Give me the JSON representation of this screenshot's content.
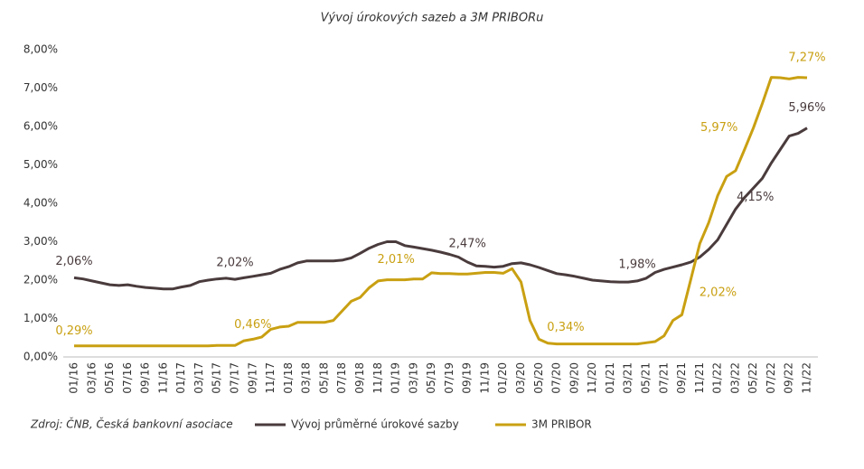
{
  "chart_data": {
    "type": "line",
    "title": "Vývoj úrokových sazeb a 3M PRIBORu",
    "source": "Zdroj: ČNB, Česká bankovní asociace",
    "categories": [
      "01/16",
      null,
      "03/16",
      null,
      "05/16",
      null,
      "07/16",
      null,
      "09/16",
      null,
      "11/16",
      null,
      "01/17",
      null,
      "03/17",
      null,
      "05/17",
      null,
      "07/17",
      null,
      "09/17",
      null,
      "11/17",
      null,
      "01/18",
      null,
      "03/18",
      null,
      "05/18",
      null,
      "07/18",
      null,
      "09/18",
      null,
      "11/18",
      null,
      "01/19",
      null,
      "03/19",
      null,
      "05/19",
      null,
      "07/19",
      null,
      "09/19",
      null,
      "11/19",
      null,
      "01/20",
      null,
      "03/20",
      null,
      "05/20",
      null,
      "07/20",
      null,
      "09/20",
      null,
      "11/20",
      null,
      "01/21",
      null,
      "03/21",
      null,
      "05/21",
      null,
      "07/21",
      null,
      "09/21",
      null,
      "11/21",
      null,
      "01/22",
      null,
      "03/22",
      null,
      "05/22",
      null,
      "07/22",
      null,
      "09/22",
      null,
      "11/22"
    ],
    "series": [
      {
        "name": "Vývoj průměrné úrokové sazby",
        "color": "#4a3b3d",
        "values": [
          2.06,
          2.03,
          1.98,
          1.93,
          1.88,
          1.86,
          1.88,
          1.84,
          1.81,
          1.79,
          1.77,
          1.77,
          1.82,
          1.86,
          1.96,
          2.0,
          2.03,
          2.05,
          2.02,
          2.06,
          2.1,
          2.14,
          2.18,
          2.28,
          2.35,
          2.45,
          2.5,
          2.5,
          2.5,
          2.5,
          2.52,
          2.58,
          2.7,
          2.83,
          2.93,
          3.0,
          3.0,
          2.9,
          2.86,
          2.82,
          2.78,
          2.73,
          2.67,
          2.6,
          2.47,
          2.37,
          2.36,
          2.34,
          2.36,
          2.43,
          2.45,
          2.4,
          2.33,
          2.25,
          2.17,
          2.14,
          2.1,
          2.05,
          2.0,
          1.98,
          1.96,
          1.95,
          1.95,
          1.98,
          2.05,
          2.2,
          2.28,
          2.34,
          2.4,
          2.47,
          2.6,
          2.8,
          3.05,
          3.45,
          3.85,
          4.15,
          4.4,
          4.65,
          5.05,
          5.4,
          5.75,
          5.82,
          5.96
        ],
        "value_labels": [
          "2,06%",
          null,
          null,
          null,
          null,
          null,
          null,
          null,
          null,
          null,
          null,
          null,
          null,
          null,
          null,
          null,
          null,
          null,
          "2,02%",
          null,
          null,
          null,
          null,
          null,
          null,
          null,
          null,
          null,
          null,
          null,
          null,
          null,
          null,
          null,
          null,
          null,
          null,
          null,
          null,
          null,
          null,
          null,
          null,
          null,
          "2,47%",
          null,
          null,
          null,
          null,
          null,
          null,
          null,
          null,
          null,
          null,
          null,
          null,
          null,
          null,
          null,
          null,
          null,
          null,
          "1,98%",
          null,
          null,
          null,
          null,
          null,
          null,
          null,
          null,
          null,
          null,
          null,
          "4,15%",
          null,
          null,
          null,
          null,
          null,
          null,
          "5,96%"
        ]
      },
      {
        "name": "3M PRIBOR",
        "color": "#c9a012",
        "values": [
          0.29,
          0.29,
          0.29,
          0.29,
          0.29,
          0.29,
          0.29,
          0.29,
          0.29,
          0.29,
          0.29,
          0.29,
          0.29,
          0.29,
          0.29,
          0.29,
          0.3,
          0.3,
          0.3,
          0.42,
          0.46,
          0.52,
          0.72,
          0.78,
          0.8,
          0.9,
          0.9,
          0.9,
          0.9,
          0.95,
          1.2,
          1.45,
          1.55,
          1.8,
          1.98,
          2.01,
          2.01,
          2.01,
          2.03,
          2.03,
          2.19,
          2.17,
          2.17,
          2.16,
          2.16,
          2.18,
          2.2,
          2.2,
          2.18,
          2.3,
          1.95,
          0.95,
          0.46,
          0.36,
          0.34,
          0.34,
          0.34,
          0.34,
          0.34,
          0.34,
          0.34,
          0.34,
          0.34,
          0.34,
          0.37,
          0.4,
          0.55,
          0.95,
          1.1,
          2.02,
          2.95,
          3.5,
          4.2,
          4.7,
          4.85,
          5.4,
          5.97,
          6.6,
          7.28,
          7.27,
          7.24,
          7.28,
          7.27
        ],
        "value_labels": [
          "0,29%",
          null,
          null,
          null,
          null,
          null,
          null,
          null,
          null,
          null,
          null,
          null,
          null,
          null,
          null,
          null,
          null,
          null,
          null,
          null,
          "0,46%",
          null,
          null,
          null,
          null,
          null,
          null,
          null,
          null,
          null,
          null,
          null,
          null,
          null,
          null,
          "2,01%",
          null,
          null,
          null,
          null,
          null,
          null,
          null,
          null,
          null,
          null,
          null,
          null,
          null,
          null,
          null,
          null,
          null,
          null,
          null,
          "0,34%",
          null,
          null,
          null,
          null,
          null,
          null,
          null,
          null,
          null,
          null,
          null,
          null,
          null,
          "2,02%",
          null,
          null,
          null,
          null,
          null,
          null,
          "5,97%",
          null,
          null,
          null,
          null,
          null,
          "7,27%"
        ]
      }
    ],
    "ylim": [
      0,
      8
    ],
    "yticks": [
      {
        "value": 0,
        "label": "0,00%"
      },
      {
        "value": 1,
        "label": "1,00%"
      },
      {
        "value": 2,
        "label": "2,00%"
      },
      {
        "value": 3,
        "label": "3,00%"
      },
      {
        "value": 4,
        "label": "4,00%"
      },
      {
        "value": 5,
        "label": "5,00%"
      },
      {
        "value": 6,
        "label": "6,00%"
      },
      {
        "value": 7,
        "label": "7,00%"
      },
      {
        "value": 8,
        "label": "8,00%"
      }
    ],
    "grid": false
  }
}
